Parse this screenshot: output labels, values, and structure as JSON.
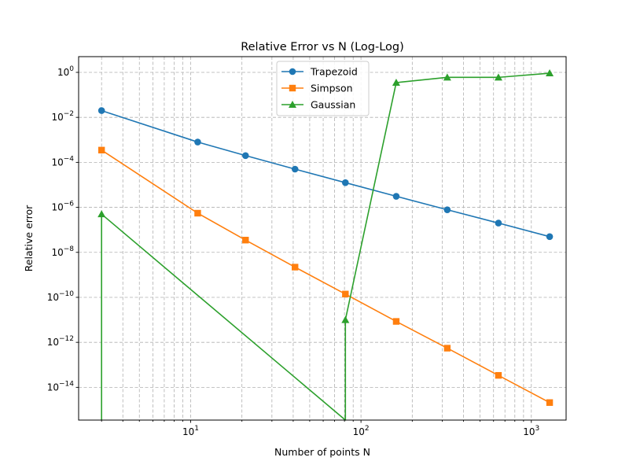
{
  "chart_data": {
    "type": "line",
    "title": "Relative Error vs N (Log-Log)",
    "xlabel": "Number of points N",
    "ylabel": "Relative error",
    "xscale": "log",
    "yscale": "log",
    "xlim": [
      2.2,
      1600
    ],
    "ylim": [
      3.5e-16,
      5
    ],
    "grid": true,
    "legend_position": "top-center",
    "x_ticks": [
      {
        "value": 10,
        "base": "10",
        "exp": "1"
      },
      {
        "value": 100,
        "base": "10",
        "exp": "2"
      },
      {
        "value": 1000,
        "base": "10",
        "exp": "3"
      }
    ],
    "y_ticks": [
      {
        "value": 1,
        "base": "10",
        "exp": "0"
      },
      {
        "value": 0.01,
        "base": "10",
        "exp": "−2"
      },
      {
        "value": 0.0001,
        "base": "10",
        "exp": "−4"
      },
      {
        "value": 1e-06,
        "base": "10",
        "exp": "−6"
      },
      {
        "value": 1e-08,
        "base": "10",
        "exp": "−8"
      },
      {
        "value": 1e-10,
        "base": "10",
        "exp": "−10"
      },
      {
        "value": 1e-12,
        "base": "10",
        "exp": "−12"
      },
      {
        "value": 1e-14,
        "base": "10",
        "exp": "−14"
      }
    ],
    "series": [
      {
        "name": "Trapezoid",
        "color": "#1f77b4",
        "marker": "circle",
        "x": [
          3,
          11,
          21,
          41,
          81,
          161,
          321,
          641,
          1281
        ],
        "y": [
          0.02,
          0.0008,
          0.0002,
          5e-05,
          1.25e-05,
          3.1e-06,
          7.8e-07,
          2e-07,
          5e-08
        ]
      },
      {
        "name": "Simpson",
        "color": "#ff7f0e",
        "marker": "square",
        "x": [
          3,
          11,
          21,
          41,
          81,
          161,
          321,
          641,
          1281
        ],
        "y": [
          0.00035,
          5.5e-07,
          3.5e-08,
          2.2e-09,
          1.4e-10,
          8.5e-12,
          5.5e-13,
          3.4e-14,
          2.1e-15
        ]
      },
      {
        "name": "Gaussian",
        "color": "#2ca02c",
        "marker": "triangle",
        "x": [
          3,
          3,
          81,
          81,
          161,
          321,
          641,
          1281
        ],
        "y": [
          1e-17,
          5e-07,
          1e-17,
          1e-11,
          0.35,
          0.6,
          0.6,
          0.92
        ]
      }
    ]
  }
}
